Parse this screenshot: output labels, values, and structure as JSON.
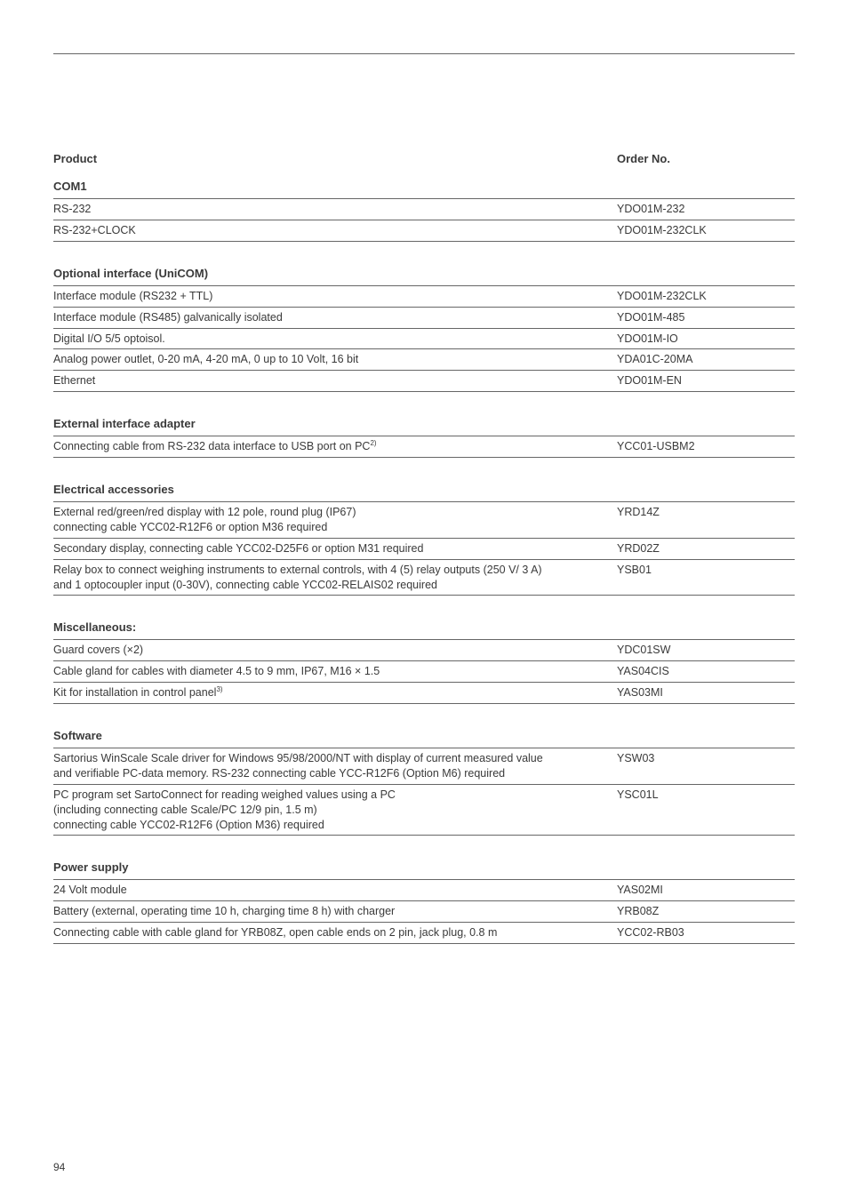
{
  "header": {
    "product": "Product",
    "orderno": "Order No."
  },
  "sections": {
    "com1": {
      "title": "COM1",
      "rows": [
        {
          "desc": "RS-232",
          "order": "YDO01M-232"
        },
        {
          "desc": "RS-232+CLOCK",
          "order": "YDO01M-232CLK"
        }
      ]
    },
    "optional": {
      "title": "Optional interface (UniCOM)",
      "rows": [
        {
          "desc": "Interface module (RS232 + TTL)",
          "order": "YDO01M-232CLK"
        },
        {
          "desc": "Interface module (RS485) galvanically isolated",
          "order": "YDO01M-485"
        },
        {
          "desc": "Digital I/O 5/5 optoisol.",
          "order": "YDO01M-IO"
        },
        {
          "desc": "Analog power outlet, 0-20 mA, 4-20 mA, 0 up to 10 Volt, 16 bit",
          "order": "YDA01C-20MA"
        },
        {
          "desc": "Ethernet",
          "order": "YDO01M-EN"
        }
      ]
    },
    "external": {
      "title": "External interface adapter",
      "rows": [
        {
          "desc": "Connecting cable from RS-232 data interface to USB port on PC",
          "sup": "2)",
          "order": "YCC01-USBM2"
        }
      ]
    },
    "electrical": {
      "title": "Electrical accessories",
      "rows": [
        {
          "desc": "External red/green/red display with 12 pole, round plug (IP67)\nconnecting cable YCC02-R12F6 or option M36 required",
          "order": "YRD14Z"
        },
        {
          "desc": "Secondary display, connecting cable YCC02-D25F6 or option M31 required",
          "order": "YRD02Z"
        },
        {
          "desc": "Relay box to connect weighing instruments to external controls, with 4 (5) relay outputs (250 V/ 3 A)\nand 1 optocoupler input (0-30V), connecting cable YCC02-RELAIS02 required",
          "order": "YSB01"
        }
      ]
    },
    "misc": {
      "title": "Miscellaneous:",
      "rows": [
        {
          "desc": "Guard covers (×2)",
          "order": "YDC01SW"
        },
        {
          "desc": "Cable gland for cables with diameter 4.5 to 9 mm, IP67, M16 × 1.5",
          "order": "YAS04CIS"
        },
        {
          "desc": "Kit for installation in control panel",
          "sup": "3)",
          "order": "YAS03MI"
        }
      ]
    },
    "software": {
      "title": "Software",
      "rows": [
        {
          "desc": "Sartorius WinScale Scale driver for Windows 95/98/2000/NT with display of current measured value\nand verifiable PC-data memory. RS-232 connecting cable YCC-R12F6 (Option M6) required",
          "order": "YSW03"
        },
        {
          "desc": "PC program set SartoConnect for reading weighed values using a PC\n(including connecting cable Scale/PC 12/9 pin, 1.5 m)\nconnecting cable YCC02-R12F6 (Option M36) required",
          "order": "YSC01L"
        }
      ]
    },
    "power": {
      "title": "Power supply",
      "rows": [
        {
          "desc": "24 Volt module",
          "order": "YAS02MI"
        },
        {
          "desc": "Battery (external, operating time 10 h, charging time 8 h) with charger",
          "order": "YRB08Z"
        },
        {
          "desc": "Connecting cable with cable gland for YRB08Z, open cable ends on 2 pin, jack plug, 0.8 m",
          "order": "YCC02-RB03"
        }
      ]
    }
  },
  "pagenum": "94"
}
